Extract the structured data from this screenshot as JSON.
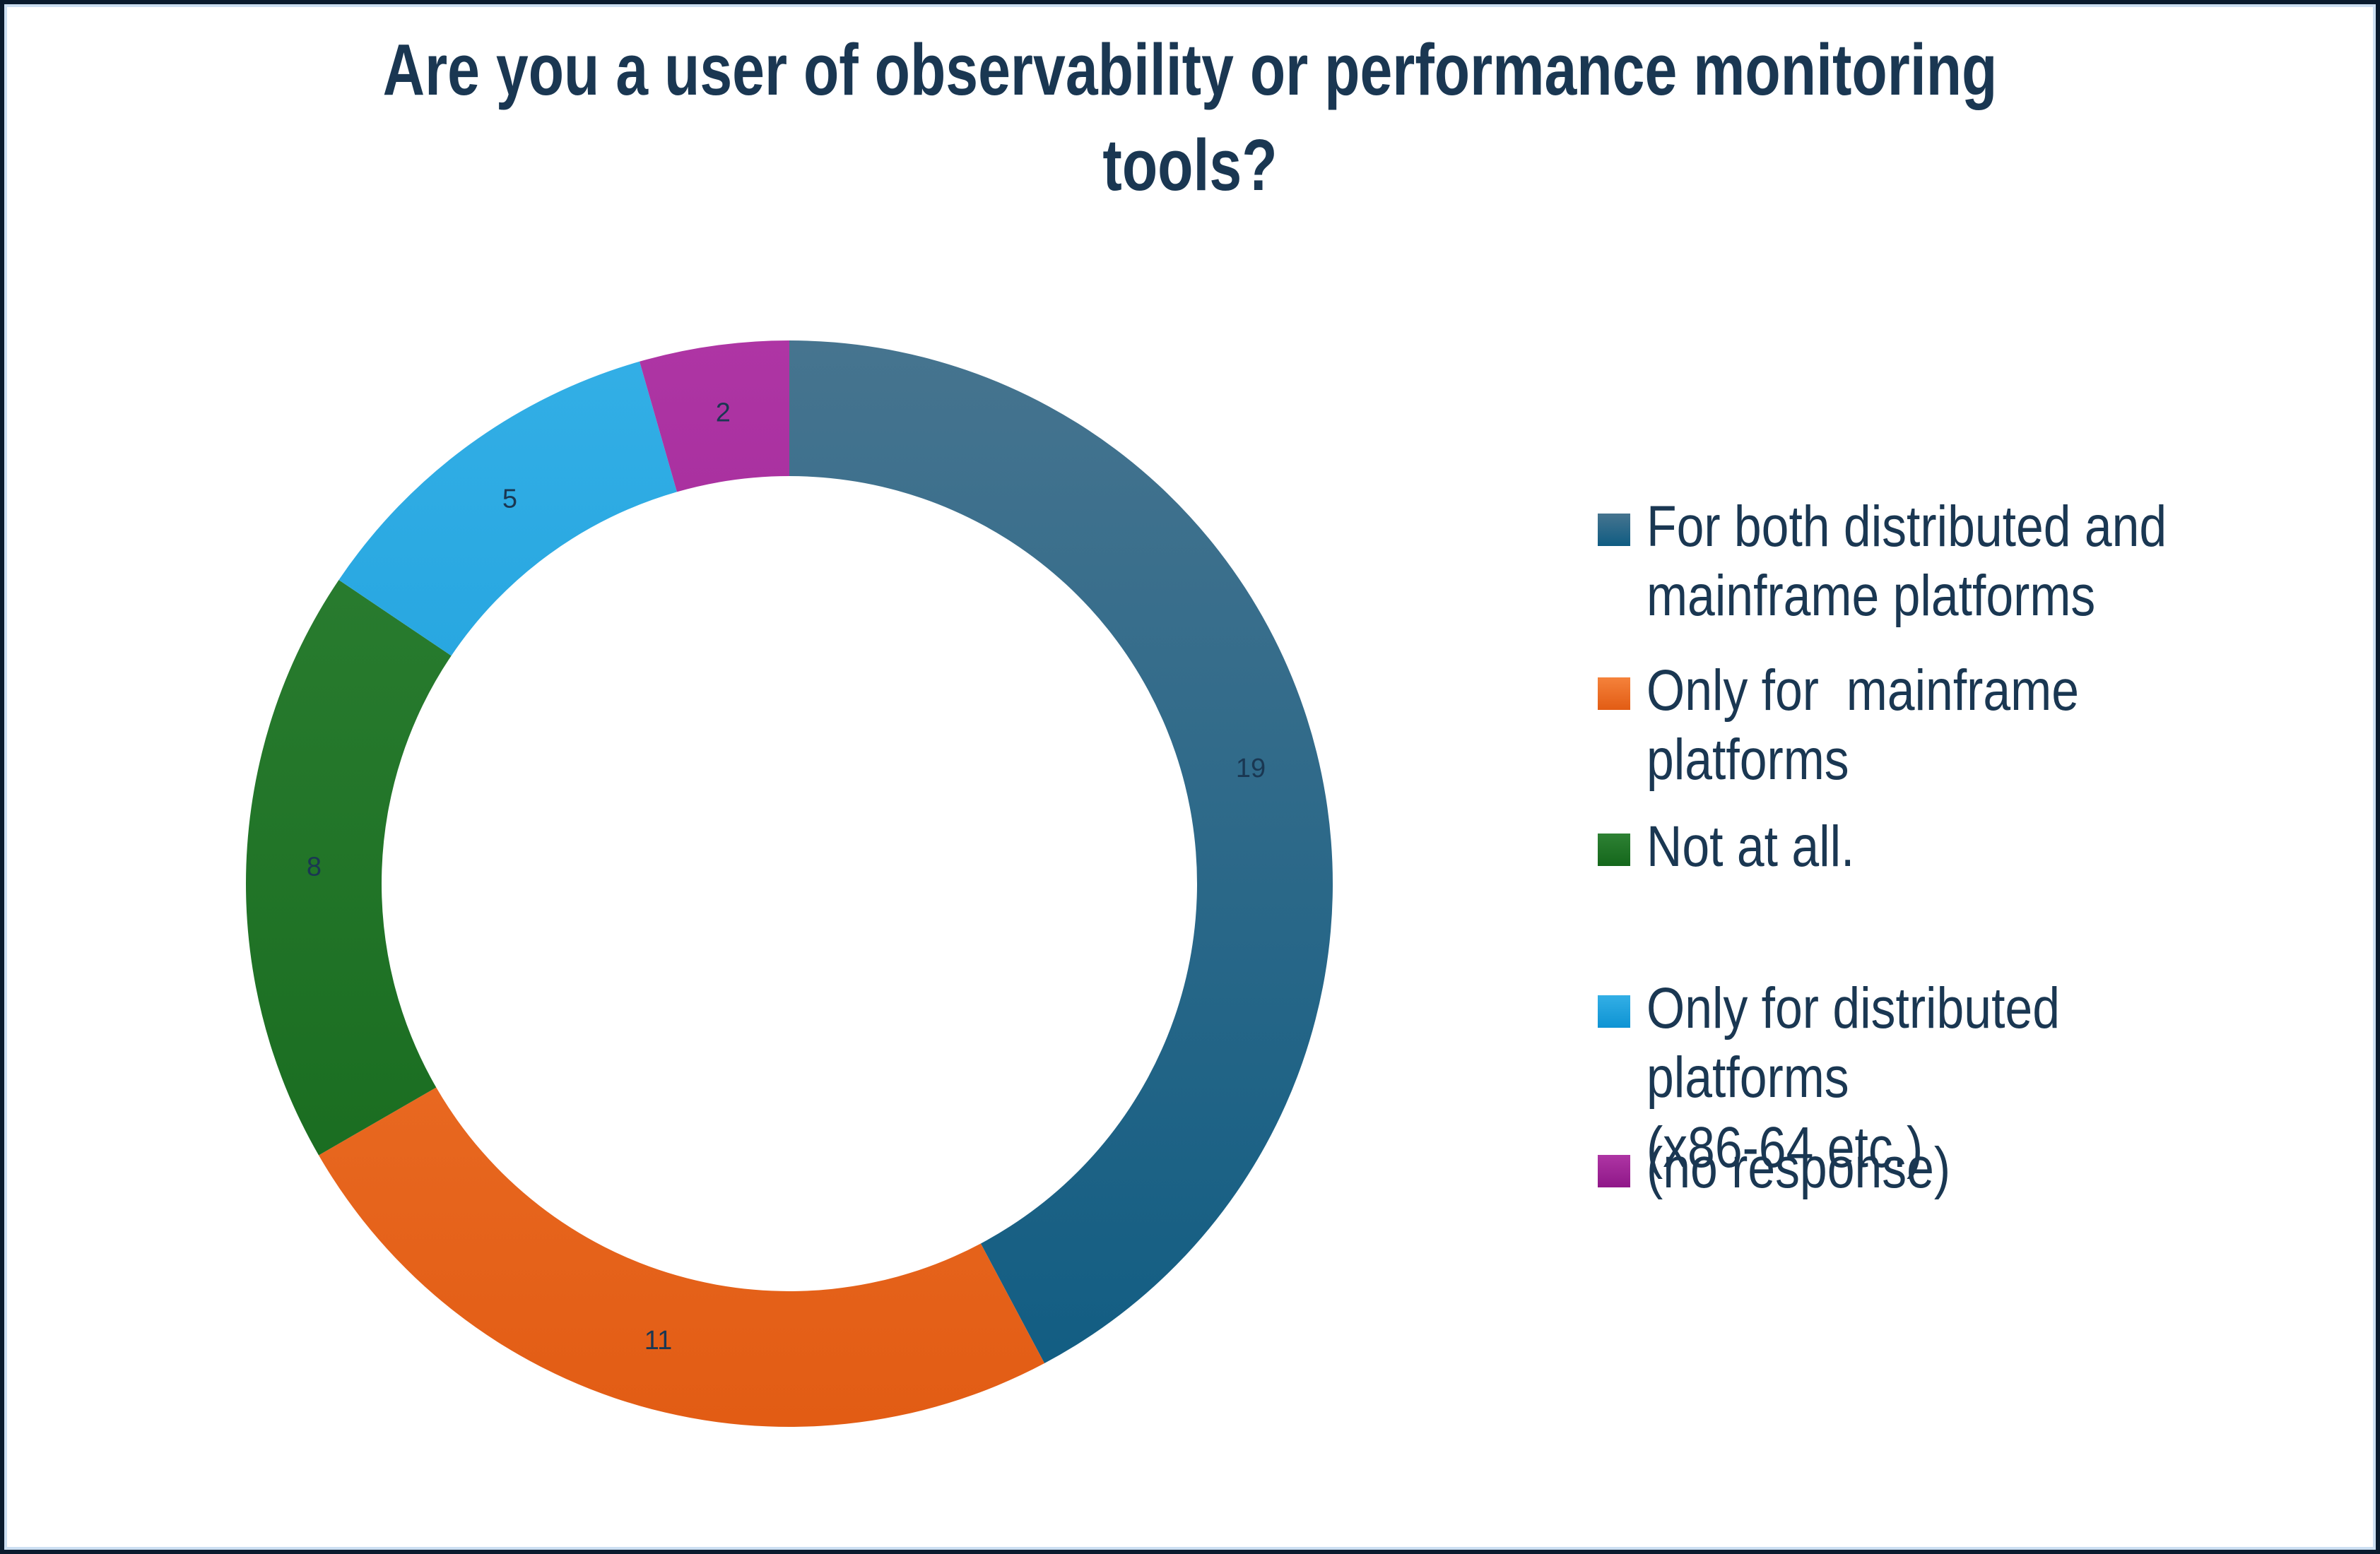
{
  "title": {
    "text": "Are you a user of observability or performance monitoring\ntools?"
  },
  "chart_data": {
    "type": "pie",
    "subtype": "donut",
    "title": "Are you a user of observability or performance monitoring tools?",
    "categories": [
      "For both distributed and mainframe platforms",
      "Only for  mainframe platforms",
      "Not at all.",
      "Only for distributed platforms (x86-64 etc.)",
      "(no response)"
    ],
    "values": [
      19,
      11,
      8,
      5,
      2
    ],
    "total": 45,
    "donut_hole_ratio": 0.75,
    "start_angle_deg": 0,
    "direction": "clockwise",
    "legend_position": "right",
    "data_labels": "values",
    "value_label_color": "#17324f",
    "slice_colors": [
      {
        "name": "steel-blue",
        "top": "#46748f",
        "bottom": "#0f5c82"
      },
      {
        "name": "orange",
        "top": "#f5823b",
        "bottom": "#e25c14"
      },
      {
        "name": "green",
        "top": "#2e8134",
        "bottom": "#14671b"
      },
      {
        "name": "light-blue",
        "top": "#33afe6",
        "bottom": "#0e93d3"
      },
      {
        "name": "magenta",
        "top": "#ae35a4",
        "bottom": "#8f1788"
      }
    ]
  },
  "legend": {
    "items": [
      {
        "label": "For both distributed and\nmainframe platforms",
        "color_name": "steel-blue"
      },
      {
        "label": "Only for  mainframe platforms",
        "color_name": "orange"
      },
      {
        "label": "Not at all.",
        "color_name": "green"
      },
      {
        "label": "Only for distributed platforms\n(x86-64 etc.)",
        "color_name": "light-blue"
      },
      {
        "label": "(no response)",
        "color_name": "magenta"
      }
    ],
    "text_color": "#1a3752"
  },
  "frame": {
    "outer_border_color": "#0a1b2e",
    "inner_border_color": "#ccdff2",
    "background": "#ffffff"
  }
}
